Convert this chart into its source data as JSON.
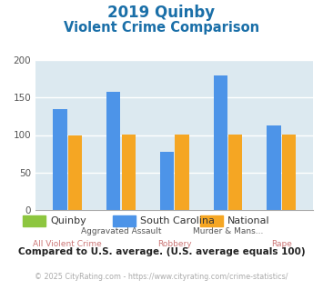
{
  "title_line1": "2019 Quinby",
  "title_line2": "Violent Crime Comparison",
  "title_color": "#1a6fa8",
  "categories": [
    "All Violent Crime",
    "Aggravated Assault",
    "Robbery",
    "Murder & Mans...",
    "Rape"
  ],
  "top_labels": [
    "",
    "Aggravated Assault",
    "",
    "Murder & Mans...",
    ""
  ],
  "bottom_labels": [
    "All Violent Crime",
    "",
    "Robbery",
    "",
    "Rape"
  ],
  "quinby_values": [
    0,
    0,
    0,
    0,
    0
  ],
  "sc_values": [
    135,
    157,
    78,
    180,
    113
  ],
  "national_values": [
    100,
    101,
    101,
    101,
    101
  ],
  "quinby_color": "#8dc63f",
  "sc_color": "#4d94e8",
  "national_color": "#f5a623",
  "bg_color": "#dce9f0",
  "ylim": [
    0,
    200
  ],
  "yticks": [
    0,
    50,
    100,
    150,
    200
  ],
  "legend_labels": [
    "Quinby",
    "South Carolina",
    "National"
  ],
  "footnote1": "Compared to U.S. average. (U.S. average equals 100)",
  "footnote2": "© 2025 CityRating.com - https://www.cityrating.com/crime-statistics/",
  "footnote1_color": "#222222",
  "footnote2_color": "#aaaaaa",
  "top_label_color": "#555555",
  "bottom_label_color": "#cc7777"
}
